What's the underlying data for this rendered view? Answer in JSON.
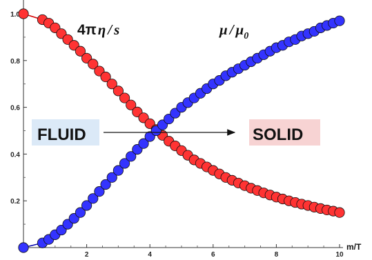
{
  "chart_data": {
    "type": "scatter",
    "x_axis": {
      "label": "m/T",
      "ticks": [
        2,
        4,
        6,
        8,
        10
      ],
      "range": [
        0,
        10
      ]
    },
    "y_axis": {
      "ticks": [
        "0.2",
        "0.4",
        "0.6",
        "0.8",
        "1.0"
      ],
      "range": [
        0,
        1.0
      ]
    },
    "series": [
      {
        "name_parts": {
          "prefix": "4π",
          "mid": "η",
          "slash": "/",
          "suffix": "s"
        },
        "color": "#ff3333",
        "line_color": "#d40000",
        "values": [
          [
            0.0,
            1.0
          ],
          [
            0.6,
            0.975
          ],
          [
            0.8,
            0.96
          ],
          [
            1.0,
            0.94
          ],
          [
            1.2,
            0.915
          ],
          [
            1.4,
            0.89
          ],
          [
            1.6,
            0.865
          ],
          [
            1.8,
            0.84
          ],
          [
            2.0,
            0.81
          ],
          [
            2.2,
            0.785
          ],
          [
            2.4,
            0.755
          ],
          [
            2.6,
            0.73
          ],
          [
            2.8,
            0.7
          ],
          [
            3.0,
            0.67
          ],
          [
            3.2,
            0.64
          ],
          [
            3.4,
            0.61
          ],
          [
            3.6,
            0.58
          ],
          [
            3.8,
            0.555
          ],
          [
            4.0,
            0.53
          ],
          [
            4.2,
            0.505
          ],
          [
            4.4,
            0.48
          ],
          [
            4.6,
            0.455
          ],
          [
            4.8,
            0.435
          ],
          [
            5.0,
            0.415
          ],
          [
            5.2,
            0.395
          ],
          [
            5.4,
            0.375
          ],
          [
            5.6,
            0.36
          ],
          [
            5.8,
            0.345
          ],
          [
            6.0,
            0.33
          ],
          [
            6.2,
            0.315
          ],
          [
            6.4,
            0.3
          ],
          [
            6.6,
            0.288
          ],
          [
            6.8,
            0.276
          ],
          [
            7.0,
            0.265
          ],
          [
            7.2,
            0.254
          ],
          [
            7.4,
            0.244
          ],
          [
            7.6,
            0.234
          ],
          [
            7.8,
            0.225
          ],
          [
            8.0,
            0.216
          ],
          [
            8.2,
            0.208
          ],
          [
            8.4,
            0.2
          ],
          [
            8.6,
            0.193
          ],
          [
            8.8,
            0.186
          ],
          [
            9.0,
            0.18
          ],
          [
            9.2,
            0.173
          ],
          [
            9.4,
            0.167
          ],
          [
            9.6,
            0.161
          ],
          [
            9.8,
            0.156
          ],
          [
            10.0,
            0.15
          ]
        ]
      },
      {
        "name_parts": {
          "prefix": "",
          "mid": "μ",
          "slash": "/",
          "suffix": "μ",
          "subscript": "0"
        },
        "color": "#3333ff",
        "line_color": "#0000aa",
        "values": [
          [
            0.0,
            0.0
          ],
          [
            0.6,
            0.02
          ],
          [
            0.8,
            0.035
          ],
          [
            1.0,
            0.055
          ],
          [
            1.2,
            0.075
          ],
          [
            1.4,
            0.1
          ],
          [
            1.6,
            0.125
          ],
          [
            1.8,
            0.15
          ],
          [
            2.0,
            0.18
          ],
          [
            2.2,
            0.21
          ],
          [
            2.4,
            0.24
          ],
          [
            2.6,
            0.27
          ],
          [
            2.8,
            0.3
          ],
          [
            3.0,
            0.33
          ],
          [
            3.2,
            0.36
          ],
          [
            3.4,
            0.39
          ],
          [
            3.6,
            0.42
          ],
          [
            3.8,
            0.445
          ],
          [
            4.0,
            0.475
          ],
          [
            4.2,
            0.5
          ],
          [
            4.4,
            0.525
          ],
          [
            4.6,
            0.55
          ],
          [
            4.8,
            0.575
          ],
          [
            5.0,
            0.6
          ],
          [
            5.2,
            0.62
          ],
          [
            5.4,
            0.64
          ],
          [
            5.6,
            0.66
          ],
          [
            5.8,
            0.68
          ],
          [
            6.0,
            0.7
          ],
          [
            6.2,
            0.715
          ],
          [
            6.4,
            0.735
          ],
          [
            6.6,
            0.75
          ],
          [
            6.8,
            0.765
          ],
          [
            7.0,
            0.78
          ],
          [
            7.2,
            0.795
          ],
          [
            7.4,
            0.81
          ],
          [
            7.6,
            0.825
          ],
          [
            7.8,
            0.84
          ],
          [
            8.0,
            0.855
          ],
          [
            8.2,
            0.865
          ],
          [
            8.4,
            0.88
          ],
          [
            8.6,
            0.89
          ],
          [
            8.8,
            0.905
          ],
          [
            9.0,
            0.915
          ],
          [
            9.2,
            0.925
          ],
          [
            9.4,
            0.94
          ],
          [
            9.6,
            0.95
          ],
          [
            9.8,
            0.96
          ],
          [
            10.0,
            0.97
          ]
        ]
      }
    ],
    "annotations": {
      "fluid": {
        "text": "FLUID",
        "background": "#dbe9f7"
      },
      "solid": {
        "text": "SOLID",
        "background": "#f7d3d3"
      },
      "arrow_from": "FLUID",
      "arrow_to": "SOLID"
    },
    "grid": false
  }
}
